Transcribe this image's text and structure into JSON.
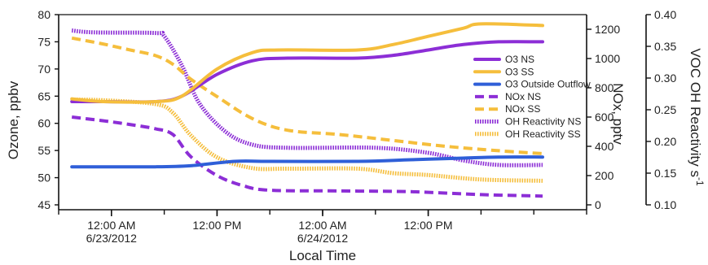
{
  "chart_data": {
    "type": "line",
    "xlabel": "Local Time",
    "x_range_hours": [
      -6,
      54
    ],
    "x_ticks": [
      {
        "hours": 0,
        "label": "12:00 AM",
        "sublabel": "6/23/2012"
      },
      {
        "hours": 12,
        "label": "12:00 PM",
        "sublabel": ""
      },
      {
        "hours": 24,
        "label": "12:00 AM",
        "sublabel": "6/24/2012"
      },
      {
        "hours": 36,
        "label": "12:00 PM",
        "sublabel": ""
      }
    ],
    "x_minor_tick_spacing_hours": 6,
    "axes": {
      "ozone": {
        "label": "Ozone, ppbv",
        "range": [
          45,
          80
        ],
        "ticks": [
          "45",
          "50",
          "55",
          "60",
          "65",
          "70",
          "75",
          "80"
        ],
        "side": "left"
      },
      "nox": {
        "label": "NOx, pptv",
        "range": [
          0,
          1300
        ],
        "ticks": [
          "0",
          "200",
          "400",
          "600",
          "800",
          "1000",
          "1200"
        ],
        "side": "right-inner"
      },
      "voc": {
        "label": "VOC OH Reactivity s",
        "label_superscript": "-1",
        "range": [
          0.1,
          0.4
        ],
        "ticks": [
          "0.10",
          "0.15",
          "0.20",
          "0.25",
          "0.30",
          "0.35",
          "0.40"
        ],
        "side": "right-outer"
      }
    },
    "legend_position": "right",
    "series": [
      {
        "name": "O3 NS",
        "axis": "ozone",
        "color": "#8c2ed6",
        "style": "solid",
        "points": [
          [
            -4.5,
            64
          ],
          [
            -1,
            64
          ],
          [
            5,
            64
          ],
          [
            8,
            65
          ],
          [
            12,
            69
          ],
          [
            16,
            71.5
          ],
          [
            20,
            72
          ],
          [
            28,
            72
          ],
          [
            32,
            72.5
          ],
          [
            36,
            73.5
          ],
          [
            40,
            74.5
          ],
          [
            44,
            75
          ],
          [
            49,
            75
          ]
        ]
      },
      {
        "name": "O3 SS",
        "axis": "ozone",
        "color": "#f5be3c",
        "style": "solid",
        "points": [
          [
            -4.5,
            64.5
          ],
          [
            -1,
            64
          ],
          [
            5,
            64
          ],
          [
            8,
            65
          ],
          [
            12,
            70
          ],
          [
            16,
            73
          ],
          [
            19,
            73.5
          ],
          [
            28,
            73.5
          ],
          [
            32,
            74.5
          ],
          [
            36,
            76
          ],
          [
            40,
            77.5
          ],
          [
            42,
            78.3
          ],
          [
            49,
            78
          ]
        ]
      },
      {
        "name": "O3 Outside Outflow",
        "axis": "ozone",
        "color": "#2f5fd8",
        "style": "solid",
        "points": [
          [
            -4.5,
            52
          ],
          [
            5,
            52
          ],
          [
            9,
            52.2
          ],
          [
            14,
            53
          ],
          [
            18,
            53
          ],
          [
            28,
            53
          ],
          [
            34,
            53.3
          ],
          [
            40,
            53.6
          ],
          [
            44,
            53.8
          ],
          [
            49,
            53.8
          ]
        ]
      },
      {
        "name": "NOx NS",
        "axis": "nox",
        "color": "#8c2ed6",
        "style": "dashed",
        "points": [
          [
            -4.5,
            600
          ],
          [
            -1,
            575
          ],
          [
            2,
            550
          ],
          [
            5,
            520
          ],
          [
            7,
            480
          ],
          [
            9,
            330
          ],
          [
            12,
            200
          ],
          [
            15,
            130
          ],
          [
            18,
            100
          ],
          [
            26,
            95
          ],
          [
            34,
            90
          ],
          [
            42,
            70
          ],
          [
            49,
            60
          ]
        ]
      },
      {
        "name": "NOx SS",
        "axis": "nox",
        "color": "#f5be3c",
        "style": "dashed",
        "points": [
          [
            -4.5,
            1140
          ],
          [
            -1,
            1100
          ],
          [
            2,
            1060
          ],
          [
            5,
            1020
          ],
          [
            7,
            960
          ],
          [
            9,
            860
          ],
          [
            12,
            740
          ],
          [
            16,
            590
          ],
          [
            20,
            510
          ],
          [
            26,
            480
          ],
          [
            32,
            440
          ],
          [
            38,
            400
          ],
          [
            44,
            370
          ],
          [
            49,
            350
          ]
        ]
      },
      {
        "name": "OH Reactivity NS",
        "axis": "voc",
        "color": "#8c2ed6",
        "style": "dotted",
        "points": [
          [
            -4.5,
            0.375
          ],
          [
            -2,
            0.372
          ],
          [
            5,
            0.371
          ],
          [
            6,
            0.366
          ],
          [
            8,
            0.32
          ],
          [
            10,
            0.26
          ],
          [
            13,
            0.215
          ],
          [
            16,
            0.195
          ],
          [
            20,
            0.19
          ],
          [
            30,
            0.19
          ],
          [
            36,
            0.182
          ],
          [
            40,
            0.17
          ],
          [
            44,
            0.163
          ],
          [
            49,
            0.163
          ]
        ]
      },
      {
        "name": "OH Reactivity SS",
        "axis": "voc",
        "color": "#f5be3c",
        "style": "dotted",
        "points": [
          [
            -4.5,
            0.266
          ],
          [
            -1,
            0.265
          ],
          [
            5,
            0.259
          ],
          [
            7,
            0.245
          ],
          [
            9,
            0.21
          ],
          [
            12,
            0.175
          ],
          [
            16,
            0.158
          ],
          [
            20,
            0.157
          ],
          [
            28,
            0.157
          ],
          [
            32,
            0.15
          ],
          [
            36,
            0.147
          ],
          [
            42,
            0.14
          ],
          [
            49,
            0.138
          ]
        ]
      }
    ]
  }
}
